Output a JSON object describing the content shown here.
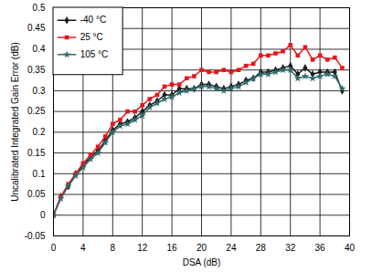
{
  "chart_data": {
    "type": "line",
    "x_label": "DSA (dB)",
    "y_label": "Uncalibrated Integrated Gain Error (dB)",
    "x": [
      0,
      1,
      2,
      3,
      4,
      5,
      6,
      7,
      8,
      9,
      10,
      11,
      12,
      13,
      14,
      15,
      16,
      17,
      18,
      19,
      20,
      21,
      22,
      23,
      24,
      25,
      26,
      27,
      28,
      29,
      30,
      31,
      32,
      33,
      34,
      35,
      36,
      37,
      38,
      39
    ],
    "series": [
      {
        "name": "-40 °C",
        "color": "#1a1a1a",
        "marker": "diamond",
        "values": [
          0,
          0.045,
          0.07,
          0.1,
          0.12,
          0.14,
          0.155,
          0.18,
          0.205,
          0.22,
          0.225,
          0.235,
          0.25,
          0.265,
          0.275,
          0.29,
          0.29,
          0.305,
          0.305,
          0.305,
          0.315,
          0.315,
          0.31,
          0.305,
          0.31,
          0.315,
          0.325,
          0.33,
          0.345,
          0.345,
          0.35,
          0.355,
          0.36,
          0.34,
          0.355,
          0.34,
          0.345,
          0.345,
          0.345,
          0.3
        ]
      },
      {
        "name": "25 °C",
        "color": "#e8161c",
        "marker": "square",
        "values": [
          0,
          0.045,
          0.075,
          0.1,
          0.125,
          0.145,
          0.165,
          0.19,
          0.22,
          0.23,
          0.25,
          0.25,
          0.265,
          0.28,
          0.29,
          0.31,
          0.315,
          0.315,
          0.33,
          0.335,
          0.35,
          0.345,
          0.345,
          0.35,
          0.345,
          0.35,
          0.36,
          0.365,
          0.385,
          0.385,
          0.39,
          0.395,
          0.41,
          0.385,
          0.405,
          0.375,
          0.385,
          0.375,
          0.38,
          0.355
        ]
      },
      {
        "name": "105 °C",
        "color": "#2f6b6b",
        "marker": "star",
        "values": [
          0,
          0.04,
          0.07,
          0.095,
          0.115,
          0.135,
          0.15,
          0.175,
          0.2,
          0.215,
          0.22,
          0.23,
          0.24,
          0.26,
          0.27,
          0.28,
          0.285,
          0.295,
          0.3,
          0.305,
          0.31,
          0.31,
          0.305,
          0.3,
          0.305,
          0.31,
          0.32,
          0.33,
          0.34,
          0.34,
          0.345,
          0.35,
          0.35,
          0.33,
          0.335,
          0.33,
          0.335,
          0.34,
          0.335,
          0.305
        ]
      }
    ],
    "xlim": [
      0,
      40
    ],
    "xticks": [
      0,
      4,
      8,
      12,
      16,
      20,
      24,
      28,
      32,
      36,
      40
    ],
    "ylim": [
      -0.05,
      0.5
    ],
    "yticks": [
      -0.05,
      0,
      0.05,
      0.1,
      0.15,
      0.2,
      0.25,
      0.3,
      0.35,
      0.4,
      0.45,
      0.5
    ],
    "grid": true,
    "legend": "top-left"
  }
}
